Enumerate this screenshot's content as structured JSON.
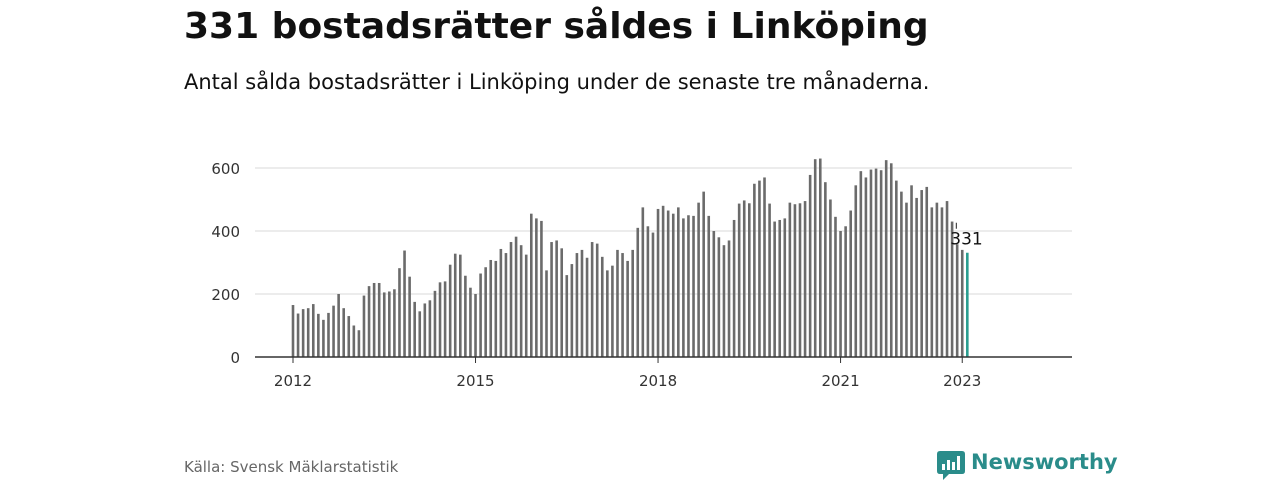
{
  "title": "331 bostadsrätter såldes i Linköping",
  "subtitle": "Antal sålda bostadsrätter i Linköping under de senaste tre månaderna.",
  "source": "Källa: Svensk Mäklarstatistik",
  "brand": "Newsworthy",
  "colors": {
    "bar": "#6b6b6b",
    "highlight": "#2a9d8f",
    "grid": "#d9d9d9",
    "brand": "#2a8c8a"
  },
  "chart_data": {
    "type": "bar",
    "x_start": "2012-01",
    "x_ticks": [
      "2012",
      "2015",
      "2018",
      "2021",
      "2023"
    ],
    "y_ticks": [
      "0",
      "200",
      "400",
      "600"
    ],
    "ylim": [
      0,
      650
    ],
    "grid": true,
    "highlight_label": "331",
    "values": [
      165,
      138,
      152,
      155,
      168,
      137,
      118,
      140,
      163,
      200,
      155,
      130,
      100,
      85,
      195,
      225,
      235,
      235,
      205,
      208,
      215,
      282,
      338,
      255,
      175,
      145,
      170,
      180,
      210,
      237,
      240,
      293,
      328,
      325,
      258,
      220,
      200,
      265,
      285,
      308,
      305,
      343,
      330,
      365,
      382,
      355,
      325,
      455,
      440,
      432,
      275,
      365,
      370,
      345,
      260,
      295,
      330,
      340,
      315,
      365,
      360,
      318,
      275,
      290,
      340,
      330,
      305,
      340,
      410,
      475,
      415,
      395,
      470,
      480,
      465,
      455,
      475,
      440,
      450,
      448,
      490,
      525,
      448,
      400,
      380,
      355,
      370,
      435,
      487,
      497,
      488,
      550,
      560,
      570,
      487,
      430,
      435,
      440,
      490,
      485,
      488,
      495,
      578,
      628,
      630,
      555,
      500,
      445,
      400,
      415,
      465,
      545,
      590,
      570,
      595,
      598,
      593,
      625,
      615,
      560,
      525,
      490,
      545,
      505,
      530,
      540,
      475,
      490,
      475,
      495,
      430,
      358,
      340,
      331
    ]
  }
}
